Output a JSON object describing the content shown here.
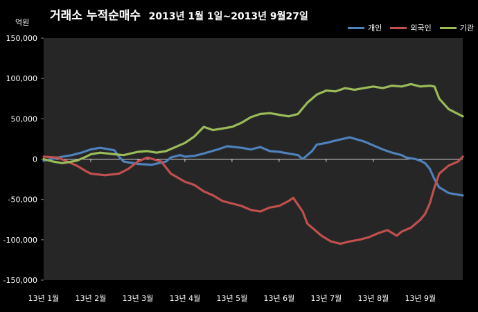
{
  "chart_data": {
    "type": "line",
    "title_main": "거래소 누적순매수",
    "title_range": "2013년 1월 1일~2013년 9월27일",
    "unit_label": "억원",
    "ylim": [
      -150000,
      150000
    ],
    "y_ticks": [
      "150,000",
      "100,000",
      "50,000",
      "0",
      "-50,000",
      "-100,000",
      "-150,000"
    ],
    "y_tick_values": [
      150000,
      100000,
      50000,
      0,
      -50000,
      -100000,
      -150000
    ],
    "x_tick_labels": [
      "13년 1월",
      "13년 2월",
      "13년 3월",
      "13년 4월",
      "13년 5월",
      "13년 6월",
      "13년 7월",
      "13년 8월",
      "13년 9월"
    ],
    "x_tick_months": [
      0,
      1,
      2,
      3,
      4,
      5,
      6,
      7,
      8
    ],
    "x_end_month": 8.9,
    "grid": false,
    "legend_position": "top-right",
    "series": [
      {
        "name": "개인",
        "color": "#4f81bd",
        "x": [
          0,
          0.3,
          0.6,
          0.8,
          1.0,
          1.2,
          1.5,
          1.6,
          1.7,
          2.0,
          2.3,
          2.6,
          2.7,
          2.9,
          3.0,
          3.2,
          3.4,
          3.7,
          3.9,
          4.2,
          4.4,
          4.6,
          4.8,
          5.0,
          5.2,
          5.4,
          5.5,
          5.6,
          5.7,
          5.8,
          6.0,
          6.2,
          6.5,
          6.8,
          7.0,
          7.2,
          7.4,
          7.6,
          7.7,
          7.9,
          8.0,
          8.1,
          8.2,
          8.3,
          8.4,
          8.6,
          8.9
        ],
        "values": [
          -2000,
          2000,
          5000,
          8000,
          12000,
          14000,
          11000,
          3000,
          -3000,
          -6000,
          -7000,
          -3000,
          2000,
          5000,
          3000,
          4000,
          7000,
          12000,
          16000,
          14000,
          12000,
          15000,
          10000,
          9000,
          7000,
          5000,
          0,
          5000,
          10000,
          18000,
          20000,
          23000,
          27000,
          22000,
          17000,
          12000,
          8000,
          5000,
          2000,
          0,
          -2000,
          -5000,
          -12000,
          -25000,
          -35000,
          -42000,
          -45000
        ]
      },
      {
        "name": "외국인",
        "color": "#c0504d",
        "x": [
          0,
          0.3,
          0.5,
          0.7,
          0.9,
          1.0,
          1.3,
          1.6,
          1.8,
          2.0,
          2.2,
          2.5,
          2.7,
          3.0,
          3.2,
          3.4,
          3.6,
          3.8,
          4.0,
          4.2,
          4.4,
          4.6,
          4.8,
          5.0,
          5.2,
          5.3,
          5.5,
          5.6,
          5.7,
          5.9,
          6.1,
          6.3,
          6.5,
          6.7,
          6.9,
          7.1,
          7.3,
          7.5,
          7.6,
          7.8,
          8.0,
          8.1,
          8.2,
          8.3,
          8.4,
          8.6,
          8.8,
          8.9
        ],
        "values": [
          3000,
          2000,
          -3000,
          -8000,
          -15000,
          -18000,
          -20000,
          -18000,
          -12000,
          -3000,
          2000,
          -3000,
          -18000,
          -28000,
          -32000,
          -40000,
          -45000,
          -52000,
          -55000,
          -58000,
          -63000,
          -65000,
          -60000,
          -58000,
          -52000,
          -48000,
          -65000,
          -80000,
          -85000,
          -95000,
          -102000,
          -105000,
          -102000,
          -100000,
          -97000,
          -92000,
          -88000,
          -95000,
          -90000,
          -85000,
          -75000,
          -68000,
          -55000,
          -35000,
          -18000,
          -8000,
          -3000,
          3000
        ]
      },
      {
        "name": "기관",
        "color": "#9bbb59",
        "x": [
          0,
          0.2,
          0.4,
          0.7,
          0.9,
          1.0,
          1.2,
          1.5,
          1.7,
          2.0,
          2.2,
          2.4,
          2.6,
          2.8,
          3.0,
          3.2,
          3.4,
          3.6,
          3.8,
          4.0,
          4.2,
          4.4,
          4.6,
          4.8,
          5.0,
          5.2,
          5.4,
          5.6,
          5.8,
          6.0,
          6.2,
          6.4,
          6.6,
          6.8,
          7.0,
          7.2,
          7.4,
          7.6,
          7.8,
          8.0,
          8.2,
          8.3,
          8.4,
          8.6,
          8.9
        ],
        "values": [
          0,
          -3000,
          -5000,
          -2000,
          3000,
          6000,
          8000,
          6000,
          5000,
          9000,
          10000,
          8000,
          10000,
          15000,
          20000,
          28000,
          40000,
          36000,
          38000,
          40000,
          45000,
          52000,
          56000,
          57000,
          55000,
          53000,
          56000,
          70000,
          80000,
          85000,
          84000,
          88000,
          86000,
          88000,
          90000,
          88000,
          91000,
          90000,
          93000,
          90000,
          91000,
          90000,
          75000,
          62000,
          53000
        ]
      }
    ]
  }
}
